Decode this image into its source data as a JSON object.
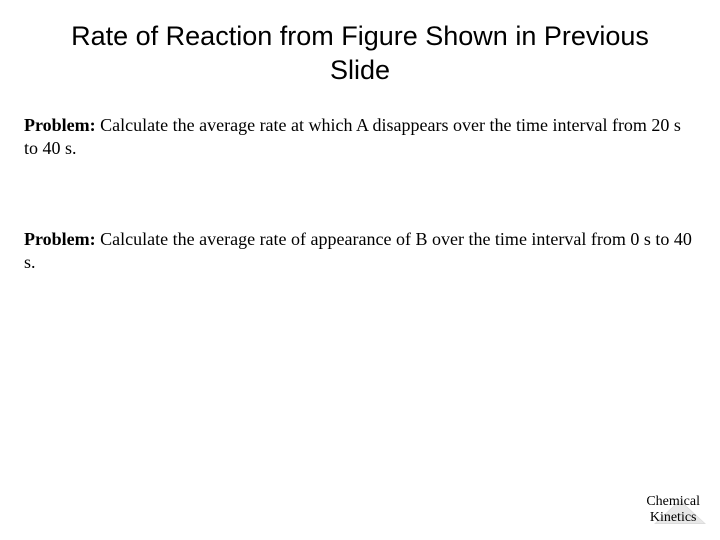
{
  "title": "Rate of Reaction from Figure Shown in Previous Slide",
  "problems": [
    {
      "label": "Problem:",
      "text": " Calculate the average rate at which A disappears over the time interval from 20 s to 40 s."
    },
    {
      "label": "Problem:",
      "text": " Calculate the average rate of appearance of B over the time interval from 0 s to 40 s."
    }
  ],
  "footer": {
    "line1": "Chemical",
    "line2": "Kinetics"
  },
  "colors": {
    "background": "#ffffff",
    "text": "#000000",
    "triangle_fill": "#e8e8e8",
    "triangle_border": "#dcdcdc"
  }
}
